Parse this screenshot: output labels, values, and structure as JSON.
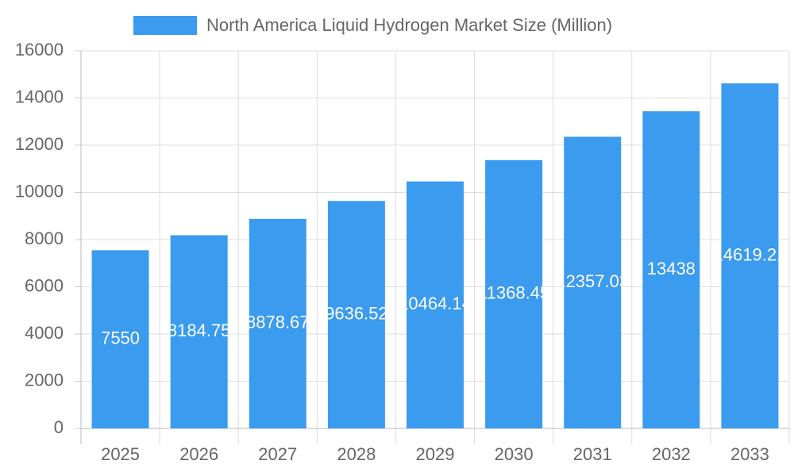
{
  "chart_data": {
    "type": "bar",
    "categories": [
      "2025",
      "2026",
      "2027",
      "2028",
      "2029",
      "2030",
      "2031",
      "2032",
      "2033"
    ],
    "series": [
      {
        "name": "North America Liquid Hydrogen Market Size (Million)",
        "color": "#3a9bef",
        "values": [
          7550,
          8184.75,
          8878.67,
          9636.52,
          10464.14,
          11368.45,
          12357.03,
          13438,
          14619.21
        ]
      }
    ],
    "ylim": [
      0,
      16000
    ],
    "yticks": [
      0,
      2000,
      4000,
      6000,
      8000,
      10000,
      12000,
      14000,
      16000
    ],
    "grid": true,
    "legend": "top"
  }
}
